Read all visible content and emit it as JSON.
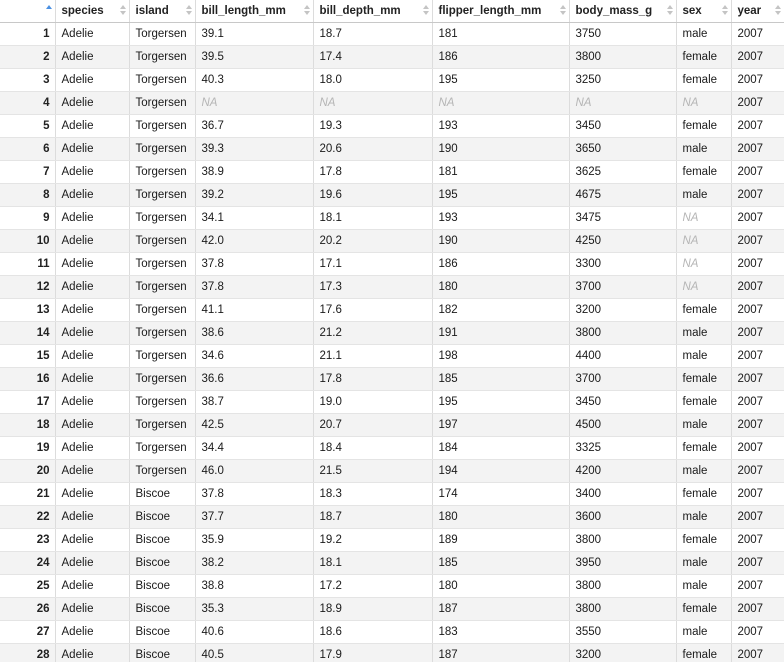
{
  "table": {
    "headers": [
      "",
      "species",
      "island",
      "bill_length_mm",
      "bill_depth_mm",
      "flipper_length_mm",
      "body_mass_g",
      "sex",
      "year"
    ],
    "sorted_column": "row-index",
    "na_text": "NA",
    "rows": [
      [
        "1",
        "Adelie",
        "Torgersen",
        "39.1",
        "18.7",
        "181",
        "3750",
        "male",
        "2007"
      ],
      [
        "2",
        "Adelie",
        "Torgersen",
        "39.5",
        "17.4",
        "186",
        "3800",
        "female",
        "2007"
      ],
      [
        "3",
        "Adelie",
        "Torgersen",
        "40.3",
        "18.0",
        "195",
        "3250",
        "female",
        "2007"
      ],
      [
        "4",
        "Adelie",
        "Torgersen",
        "NA",
        "NA",
        "NA",
        "NA",
        "NA",
        "2007"
      ],
      [
        "5",
        "Adelie",
        "Torgersen",
        "36.7",
        "19.3",
        "193",
        "3450",
        "female",
        "2007"
      ],
      [
        "6",
        "Adelie",
        "Torgersen",
        "39.3",
        "20.6",
        "190",
        "3650",
        "male",
        "2007"
      ],
      [
        "7",
        "Adelie",
        "Torgersen",
        "38.9",
        "17.8",
        "181",
        "3625",
        "female",
        "2007"
      ],
      [
        "8",
        "Adelie",
        "Torgersen",
        "39.2",
        "19.6",
        "195",
        "4675",
        "male",
        "2007"
      ],
      [
        "9",
        "Adelie",
        "Torgersen",
        "34.1",
        "18.1",
        "193",
        "3475",
        "NA",
        "2007"
      ],
      [
        "10",
        "Adelie",
        "Torgersen",
        "42.0",
        "20.2",
        "190",
        "4250",
        "NA",
        "2007"
      ],
      [
        "11",
        "Adelie",
        "Torgersen",
        "37.8",
        "17.1",
        "186",
        "3300",
        "NA",
        "2007"
      ],
      [
        "12",
        "Adelie",
        "Torgersen",
        "37.8",
        "17.3",
        "180",
        "3700",
        "NA",
        "2007"
      ],
      [
        "13",
        "Adelie",
        "Torgersen",
        "41.1",
        "17.6",
        "182",
        "3200",
        "female",
        "2007"
      ],
      [
        "14",
        "Adelie",
        "Torgersen",
        "38.6",
        "21.2",
        "191",
        "3800",
        "male",
        "2007"
      ],
      [
        "15",
        "Adelie",
        "Torgersen",
        "34.6",
        "21.1",
        "198",
        "4400",
        "male",
        "2007"
      ],
      [
        "16",
        "Adelie",
        "Torgersen",
        "36.6",
        "17.8",
        "185",
        "3700",
        "female",
        "2007"
      ],
      [
        "17",
        "Adelie",
        "Torgersen",
        "38.7",
        "19.0",
        "195",
        "3450",
        "female",
        "2007"
      ],
      [
        "18",
        "Adelie",
        "Torgersen",
        "42.5",
        "20.7",
        "197",
        "4500",
        "male",
        "2007"
      ],
      [
        "19",
        "Adelie",
        "Torgersen",
        "34.4",
        "18.4",
        "184",
        "3325",
        "female",
        "2007"
      ],
      [
        "20",
        "Adelie",
        "Torgersen",
        "46.0",
        "21.5",
        "194",
        "4200",
        "male",
        "2007"
      ],
      [
        "21",
        "Adelie",
        "Biscoe",
        "37.8",
        "18.3",
        "174",
        "3400",
        "female",
        "2007"
      ],
      [
        "22",
        "Adelie",
        "Biscoe",
        "37.7",
        "18.7",
        "180",
        "3600",
        "male",
        "2007"
      ],
      [
        "23",
        "Adelie",
        "Biscoe",
        "35.9",
        "19.2",
        "189",
        "3800",
        "female",
        "2007"
      ],
      [
        "24",
        "Adelie",
        "Biscoe",
        "38.2",
        "18.1",
        "185",
        "3950",
        "male",
        "2007"
      ],
      [
        "25",
        "Adelie",
        "Biscoe",
        "38.8",
        "17.2",
        "180",
        "3800",
        "male",
        "2007"
      ],
      [
        "26",
        "Adelie",
        "Biscoe",
        "35.3",
        "18.9",
        "187",
        "3800",
        "female",
        "2007"
      ],
      [
        "27",
        "Adelie",
        "Biscoe",
        "40.6",
        "18.6",
        "183",
        "3550",
        "male",
        "2007"
      ],
      [
        "28",
        "Adelie",
        "Biscoe",
        "40.5",
        "17.9",
        "187",
        "3200",
        "female",
        "2007"
      ]
    ]
  },
  "colors": {
    "sort_active": "#4a90e2",
    "stripe": "#f3f3f3",
    "na_text": "#b5b5b5"
  }
}
